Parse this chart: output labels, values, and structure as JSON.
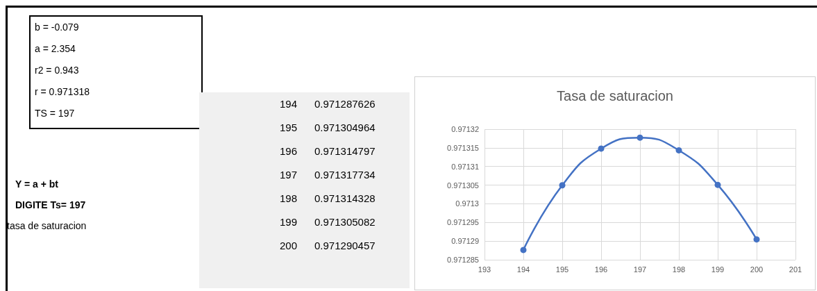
{
  "chart_data": {
    "type": "line",
    "title": "Tasa de saturacion",
    "x": [
      194,
      195,
      196,
      197,
      198,
      199,
      200
    ],
    "series": [
      {
        "color": "#4472c4",
        "values": [
          0.971287626,
          0.971304964,
          0.971314797,
          0.971317734,
          0.971314328,
          0.971305082,
          0.971290457
        ]
      }
    ],
    "xlim": [
      193,
      201
    ],
    "xticks": [
      193,
      194,
      195,
      196,
      197,
      198,
      199,
      200,
      201
    ],
    "ylim": [
      0.971285,
      0.97132
    ],
    "yticks": [
      0.971285,
      0.97129,
      0.971295,
      0.9713,
      0.971305,
      0.97131,
      0.971315,
      0.97132
    ],
    "grid": true,
    "marker": "circle",
    "annotations": [
      "b = -0.079",
      "a = 2.354",
      "r2 = 0.943",
      "r = 0.971318",
      "TS = 197",
      "Y = a + bt",
      "DIGITE Ts= 197",
      "tasa de saturacion",
      "194",
      "0.971287626",
      "195",
      "0.971304964",
      "196",
      "0.971314797",
      "197",
      "0.971317734",
      "198",
      "0.971314328",
      "199",
      "0.971305082",
      "200",
      "0.971290457"
    ]
  }
}
